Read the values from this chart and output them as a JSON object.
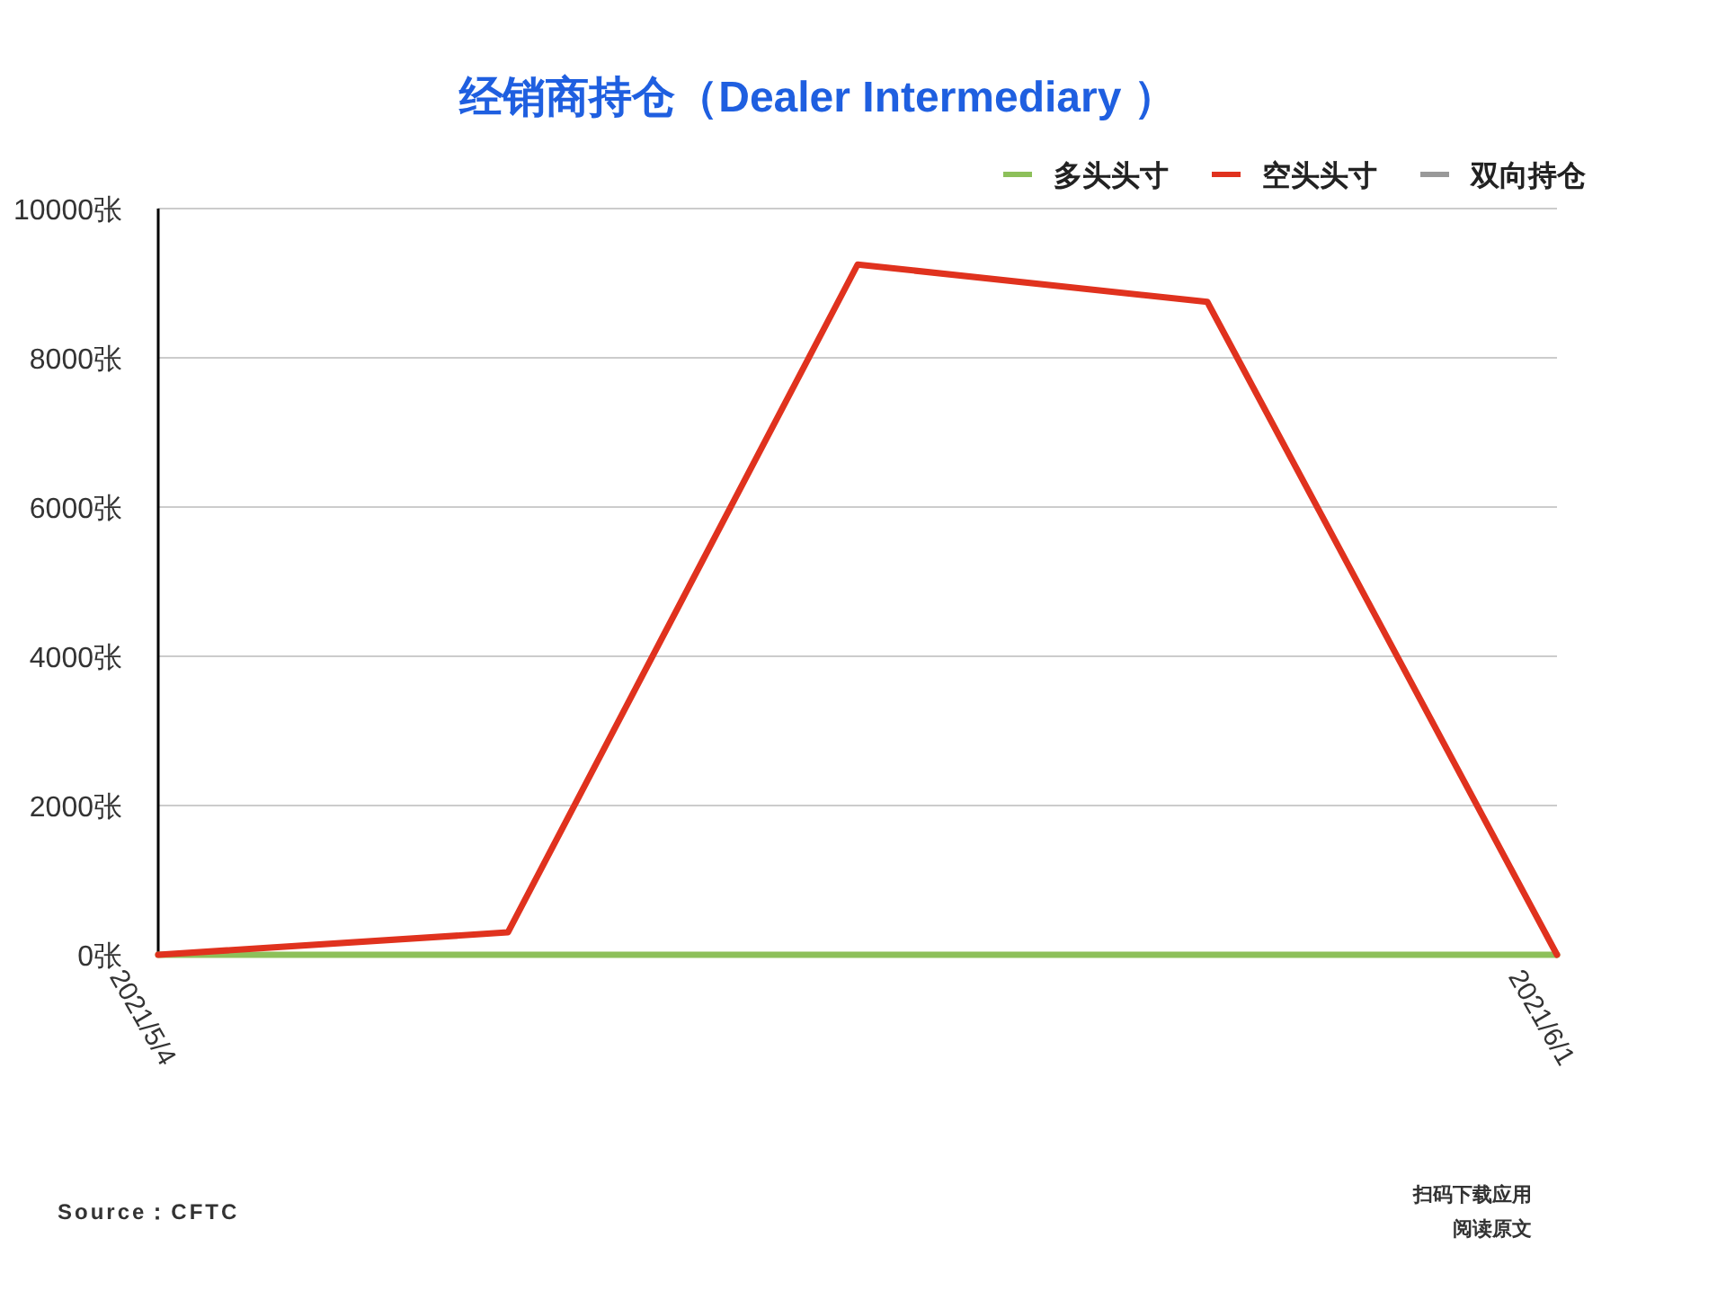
{
  "chart_data": {
    "type": "line",
    "title": "经销商持仓（Dealer Intermediary ）",
    "categories": [
      "2021/5/4",
      null,
      null,
      null,
      "2021/6/1"
    ],
    "series": [
      {
        "name": "多头头寸",
        "color": "#8dc05a",
        "values": [
          0,
          0,
          0,
          0,
          0
        ]
      },
      {
        "name": "空头头寸",
        "color": "#e0321e",
        "values": [
          0,
          300,
          9250,
          8750,
          0
        ]
      },
      {
        "name": "双向持仓",
        "color": "#999999",
        "values": [
          null,
          null,
          null,
          null,
          null
        ]
      }
    ],
    "ylim": [
      0,
      10000
    ],
    "yticks": [
      {
        "value": 0,
        "label": "0张"
      },
      {
        "value": 2000,
        "label": "2000张"
      },
      {
        "value": 4000,
        "label": "4000张"
      },
      {
        "value": 6000,
        "label": "6000张"
      },
      {
        "value": 8000,
        "label": "8000张"
      },
      {
        "value": 10000,
        "label": "10000张"
      }
    ],
    "grid": "y",
    "legend": "top right",
    "marker": "none",
    "line_style": "solid",
    "annotations": [
      "Source：CFTC",
      "扫码下载应用",
      "阅读原文"
    ]
  }
}
